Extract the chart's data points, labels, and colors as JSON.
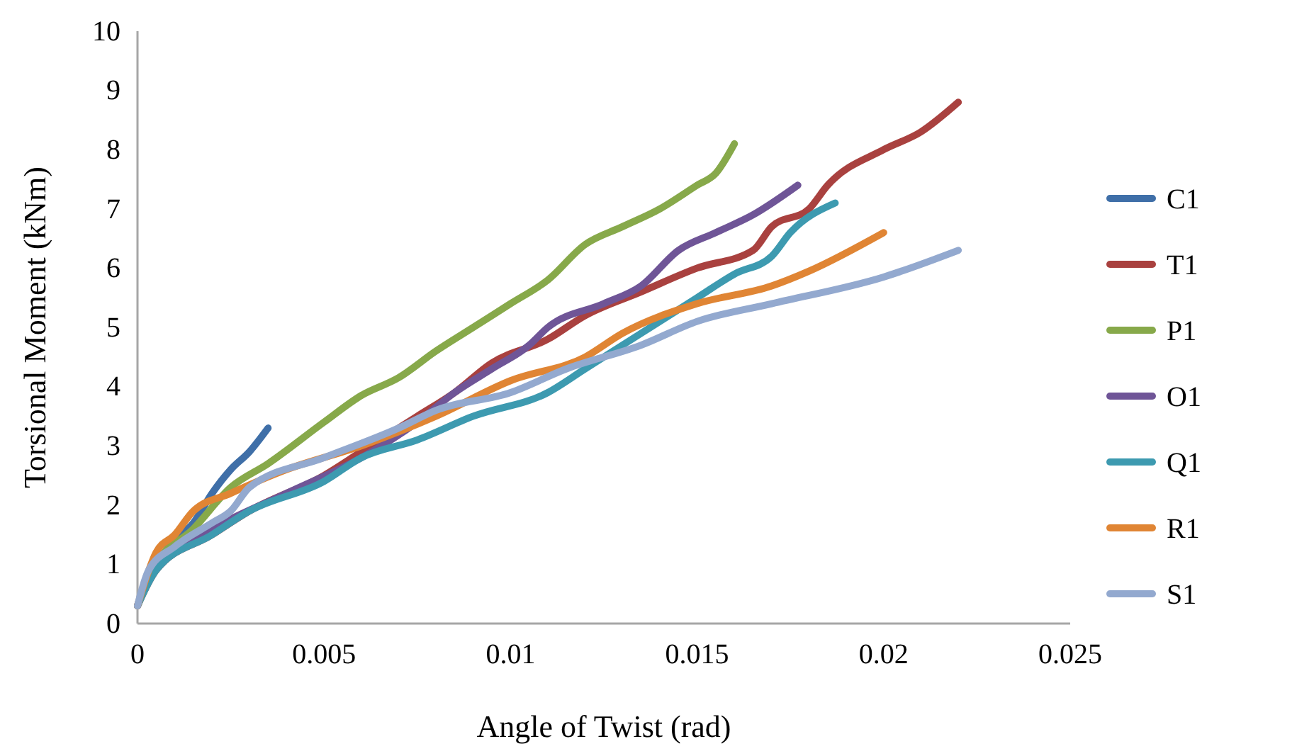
{
  "chart_data": {
    "type": "line",
    "xlabel": "Angle of Twist (rad)",
    "ylabel": "Torsional Moment (kNm)",
    "xlim": [
      0,
      0.025
    ],
    "xticks": [
      0,
      0.005,
      0.01,
      0.015,
      0.02,
      0.025
    ],
    "ylim": [
      0,
      10
    ],
    "yticks": [
      0,
      1,
      2,
      3,
      4,
      5,
      6,
      7,
      8,
      9,
      10
    ],
    "grid": false,
    "legend": "right",
    "marker": "none",
    "line_style": "solid",
    "series": [
      {
        "name": "C1",
        "color": "#3f6fa8",
        "x": [
          0,
          0.0005,
          0.001,
          0.0015,
          0.002,
          0.0025,
          0.003,
          0.0035
        ],
        "values": [
          0.3,
          1.0,
          1.4,
          1.7,
          2.2,
          2.6,
          2.9,
          3.3
        ]
      },
      {
        "name": "T1",
        "color": "#a9413f",
        "x": [
          0,
          0.0005,
          0.002,
          0.003,
          0.005,
          0.006,
          0.0075,
          0.0085,
          0.0095,
          0.011,
          0.012,
          0.0135,
          0.015,
          0.0165,
          0.017,
          0.018,
          0.0185,
          0.02,
          0.021,
          0.022
        ],
        "values": [
          0.3,
          0.9,
          1.5,
          1.9,
          2.5,
          2.9,
          3.5,
          3.9,
          4.4,
          4.8,
          5.2,
          5.6,
          6.0,
          6.3,
          6.7,
          7.0,
          7.4,
          8.0,
          8.3,
          8.8
        ]
      },
      {
        "name": "P1",
        "color": "#87a94a",
        "x": [
          0,
          0.0005,
          0.0015,
          0.0025,
          0.0035,
          0.005,
          0.006,
          0.007,
          0.008,
          0.009,
          0.01,
          0.011,
          0.012,
          0.013,
          0.014,
          0.015,
          0.0155,
          0.016
        ],
        "values": [
          0.3,
          1.0,
          1.6,
          2.3,
          2.7,
          3.4,
          3.85,
          4.15,
          4.6,
          5.0,
          5.4,
          5.8,
          6.4,
          6.7,
          7.0,
          7.4,
          7.6,
          8.1
        ]
      },
      {
        "name": "O1",
        "color": "#6f5597",
        "x": [
          0,
          0.0005,
          0.002,
          0.004,
          0.006,
          0.0075,
          0.0085,
          0.0095,
          0.0105,
          0.011,
          0.0125,
          0.0135,
          0.0145,
          0.0155,
          0.0165,
          0.0177
        ],
        "values": [
          0.3,
          1.0,
          1.6,
          2.2,
          2.8,
          3.4,
          3.9,
          4.3,
          4.7,
          5.0,
          5.4,
          5.7,
          6.3,
          6.6,
          6.9,
          7.4
        ]
      },
      {
        "name": "Q1",
        "color": "#3d9ab0",
        "x": [
          0,
          0.0005,
          0.002,
          0.003,
          0.005,
          0.006,
          0.0075,
          0.009,
          0.011,
          0.012,
          0.0135,
          0.015,
          0.016,
          0.017,
          0.0175,
          0.0187
        ],
        "values": [
          0.3,
          0.9,
          1.5,
          1.9,
          2.4,
          2.8,
          3.1,
          3.5,
          3.9,
          4.3,
          4.9,
          5.5,
          5.9,
          6.2,
          6.6,
          7.1
        ]
      },
      {
        "name": "R1",
        "color": "#e08534",
        "x": [
          0,
          0.0005,
          0.001,
          0.0015,
          0.0025,
          0.004,
          0.006,
          0.008,
          0.01,
          0.012,
          0.013,
          0.015,
          0.017,
          0.018,
          0.02
        ],
        "values": [
          0.3,
          1.2,
          1.5,
          1.9,
          2.2,
          2.6,
          3.0,
          3.5,
          4.1,
          4.5,
          4.9,
          5.4,
          5.7,
          5.95,
          6.6
        ]
      },
      {
        "name": "S1",
        "color": "#93a9cf",
        "x": [
          0,
          0.0003,
          0.001,
          0.002,
          0.0025,
          0.003,
          0.005,
          0.007,
          0.008,
          0.01,
          0.0115,
          0.0135,
          0.015,
          0.017,
          0.02,
          0.022
        ],
        "values": [
          0.3,
          0.9,
          1.3,
          1.7,
          1.9,
          2.3,
          2.8,
          3.3,
          3.6,
          3.9,
          4.3,
          4.7,
          5.1,
          5.4,
          5.85,
          6.3
        ]
      }
    ]
  }
}
